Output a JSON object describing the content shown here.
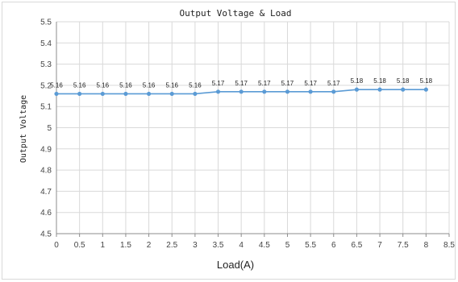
{
  "chart_data": {
    "type": "line",
    "title": "Output Voltage & Load",
    "xlabel": "Load(A)",
    "ylabel": "Output Voltage",
    "xlim": [
      0,
      8.5
    ],
    "ylim": [
      4.5,
      5.5
    ],
    "x_ticks": [
      "0",
      "0.5",
      "1",
      "1.5",
      "2",
      "2.5",
      "3",
      "3.5",
      "4",
      "4.5",
      "5",
      "5.5",
      "6",
      "6.5",
      "7",
      "7.5",
      "8",
      "8.5"
    ],
    "y_ticks": [
      "4.5",
      "4.6",
      "4.7",
      "4.8",
      "4.9",
      "5",
      "5.1",
      "5.2",
      "5.3",
      "5.4",
      "5.5"
    ],
    "grid": true,
    "series": [
      {
        "color": "#5b9bd5",
        "x": [
          0,
          0.5,
          1,
          1.5,
          2,
          2.5,
          3,
          3.5,
          4,
          4.5,
          5,
          5.5,
          6,
          6.5,
          7,
          7.5,
          8
        ],
        "values": [
          5.16,
          5.16,
          5.16,
          5.16,
          5.16,
          5.16,
          5.16,
          5.17,
          5.17,
          5.17,
          5.17,
          5.17,
          5.17,
          5.18,
          5.18,
          5.18,
          5.18
        ],
        "labels": [
          "5.16",
          "5.16",
          "5.16",
          "5.16",
          "5.16",
          "5.16",
          "5.16",
          "5.17",
          "5.17",
          "5.17",
          "5.17",
          "5.17",
          "5.17",
          "5.18",
          "5.18",
          "5.18",
          "5.18"
        ]
      }
    ]
  }
}
